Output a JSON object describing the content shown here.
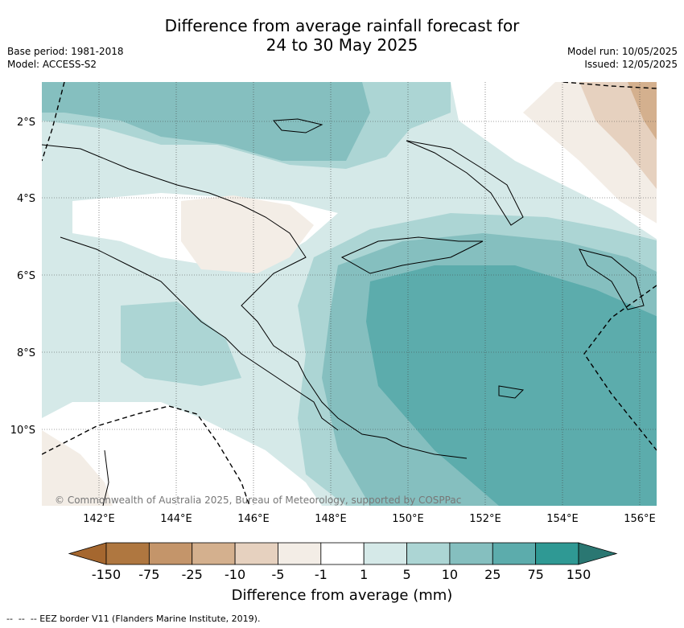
{
  "title": {
    "line1": "Difference from average rainfall forecast for",
    "line2": "24 to 30 May 2025"
  },
  "meta_left": {
    "base_period": "Base period: 1981-2018",
    "model": "Model: ACCESS-S2"
  },
  "meta_right": {
    "model_run": "Model run: 10/05/2025",
    "issued": "Issued: 12/05/2025"
  },
  "map": {
    "lat_labels": [
      "2°S",
      "4°S",
      "6°S",
      "8°S",
      "10°S"
    ],
    "lon_labels": [
      "142°E",
      "144°E",
      "146°E",
      "148°E",
      "150°E",
      "152°E",
      "154°E",
      "156°E"
    ],
    "copyright": "© Commonwealth of Australia 2025, Bureau of Meteorology, supported by COSPPac",
    "grid": "dotted"
  },
  "colorbar": {
    "title": "Difference from average (mm)",
    "tick_labels": [
      "-150",
      "-75",
      "-25",
      "-10",
      "-5",
      "-1",
      "1",
      "5",
      "10",
      "25",
      "75",
      "150"
    ],
    "colors": [
      "#a5672f",
      "#af7740",
      "#c4956a",
      "#d4b08e",
      "#e6d1bf",
      "#f3ede6",
      "#ffffff",
      "#d5e9e8",
      "#acd5d4",
      "#85bfbf",
      "#5cacac",
      "#2f9994",
      "#2a7772"
    ],
    "extend": "both"
  },
  "footer": {
    "legend_text": "--  --  -- EEZ border V11 (Flanders Marine Institute, 2019)."
  }
}
